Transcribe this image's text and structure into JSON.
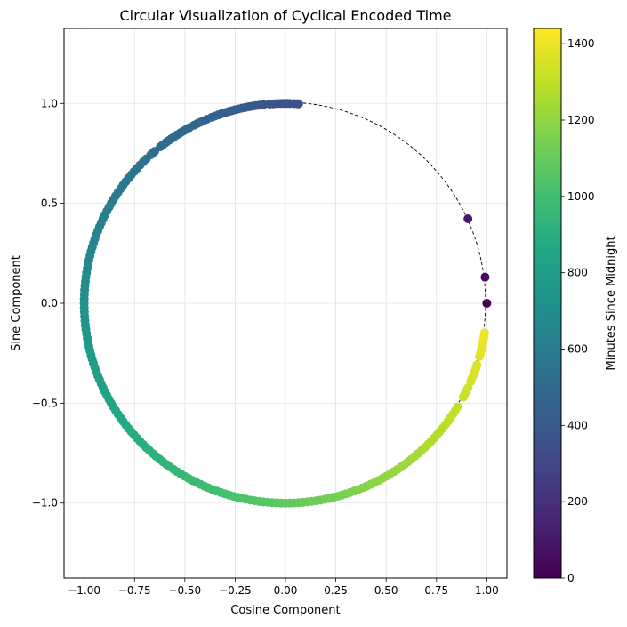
{
  "chart_data": {
    "type": "scatter",
    "title": "Circular Visualization of Cyclical Encoded Time",
    "xlabel": "Cosine Component",
    "ylabel": "Sine Component",
    "xlim": [
      -1.1,
      1.1
    ],
    "ylim": [
      -1.375,
      1.375
    ],
    "grid": true,
    "reference_circle": {
      "radius": 1,
      "style": "dashed"
    },
    "x_ticks": [
      -1.0,
      -0.75,
      -0.5,
      -0.25,
      0.0,
      0.25,
      0.5,
      0.75,
      1.0
    ],
    "x_tick_labels": [
      "−1.00",
      "−0.75",
      "−0.50",
      "−0.25",
      "0.00",
      "0.25",
      "0.50",
      "0.75",
      "1.00"
    ],
    "y_ticks": [
      -1.0,
      -0.5,
      0.0,
      0.5,
      1.0
    ],
    "y_tick_labels": [
      "−1.0",
      "−0.5",
      "0.0",
      "0.5",
      "1.0"
    ],
    "colorbar": {
      "label": "Minutes Since Midnight",
      "min": 0,
      "max": 1440,
      "colormap": "viridis",
      "ticks": [
        0,
        200,
        400,
        600,
        800,
        1000,
        1200,
        1400
      ],
      "tick_labels": [
        "0",
        "200",
        "400",
        "600",
        "800",
        "1000",
        "1200",
        "1400"
      ]
    },
    "points_minutes": [
      0,
      30,
      100,
      345,
      347,
      350,
      355,
      358,
      362,
      366,
      370,
      374,
      378,
      385,
      390,
      394,
      398,
      402,
      406,
      410,
      414,
      418,
      422,
      426,
      430,
      434,
      438,
      442,
      446,
      452,
      456,
      460,
      464,
      468,
      474,
      478,
      482,
      486,
      490,
      494,
      498,
      502,
      506,
      510,
      514,
      522,
      525,
      528,
      535,
      540,
      545,
      550,
      555,
      560,
      565,
      570,
      575,
      580,
      585,
      590,
      595,
      600,
      605,
      610,
      615,
      620,
      625,
      630,
      635,
      640,
      645,
      650,
      655,
      660,
      665,
      670,
      675,
      680,
      685,
      690,
      695,
      700,
      705,
      710,
      715,
      720,
      725,
      730,
      735,
      740,
      745,
      750,
      755,
      760,
      765,
      770,
      775,
      780,
      785,
      790,
      795,
      800,
      805,
      810,
      815,
      820,
      825,
      830,
      835,
      840,
      845,
      850,
      855,
      860,
      865,
      870,
      875,
      880,
      885,
      890,
      895,
      900,
      905,
      910,
      915,
      920,
      925,
      930,
      935,
      940,
      945,
      950,
      955,
      960,
      965,
      970,
      975,
      980,
      985,
      990,
      995,
      1000,
      1005,
      1010,
      1015,
      1020,
      1025,
      1030,
      1035,
      1040,
      1045,
      1050,
      1055,
      1060,
      1065,
      1070,
      1075,
      1080,
      1085,
      1090,
      1095,
      1100,
      1105,
      1110,
      1115,
      1120,
      1125,
      1130,
      1135,
      1140,
      1145,
      1150,
      1155,
      1160,
      1165,
      1170,
      1175,
      1180,
      1185,
      1190,
      1195,
      1200,
      1205,
      1210,
      1215,
      1220,
      1225,
      1230,
      1235,
      1240,
      1245,
      1250,
      1255,
      1260,
      1265,
      1270,
      1275,
      1280,
      1285,
      1290,
      1295,
      1300,
      1305,
      1310,
      1315,
      1328,
      1332,
      1336,
      1340,
      1348,
      1352,
      1356,
      1360,
      1364,
      1368,
      1378,
      1382,
      1386,
      1390,
      1394,
      1398,
      1402,
      1406
    ]
  }
}
